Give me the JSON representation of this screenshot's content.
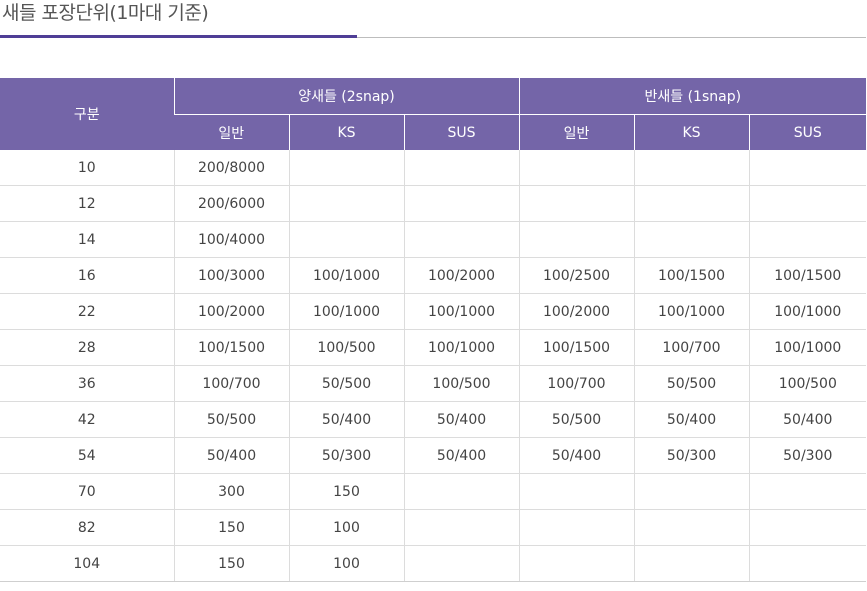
{
  "title": "새들 포장단위(1마대 기준)",
  "colors": {
    "accent": "#4f3e96",
    "header_bg": "#7465a8"
  },
  "table": {
    "header": {
      "category": "구분",
      "group1": "양새들 (2snap)",
      "group2": "반새들 (1snap)",
      "sub": [
        "일반",
        "KS",
        "SUS",
        "일반",
        "KS",
        "SUS"
      ]
    },
    "rows": [
      [
        "10",
        "200/8000",
        "",
        "",
        "",
        "",
        ""
      ],
      [
        "12",
        "200/6000",
        "",
        "",
        "",
        "",
        ""
      ],
      [
        "14",
        "100/4000",
        "",
        "",
        "",
        "",
        ""
      ],
      [
        "16",
        "100/3000",
        "100/1000",
        "100/2000",
        "100/2500",
        "100/1500",
        "100/1500"
      ],
      [
        "22",
        "100/2000",
        "100/1000",
        "100/1000",
        "100/2000",
        "100/1000",
        "100/1000"
      ],
      [
        "28",
        "100/1500",
        "100/500",
        "100/1000",
        "100/1500",
        "100/700",
        "100/1000"
      ],
      [
        "36",
        "100/700",
        "50/500",
        "100/500",
        "100/700",
        "50/500",
        "100/500"
      ],
      [
        "42",
        "50/500",
        "50/400",
        "50/400",
        "50/500",
        "50/400",
        "50/400"
      ],
      [
        "54",
        "50/400",
        "50/300",
        "50/400",
        "50/400",
        "50/300",
        "50/300"
      ],
      [
        "70",
        "300",
        "150",
        "",
        "",
        "",
        ""
      ],
      [
        "82",
        "150",
        "100",
        "",
        "",
        "",
        ""
      ],
      [
        "104",
        "150",
        "100",
        "",
        "",
        "",
        ""
      ]
    ]
  }
}
